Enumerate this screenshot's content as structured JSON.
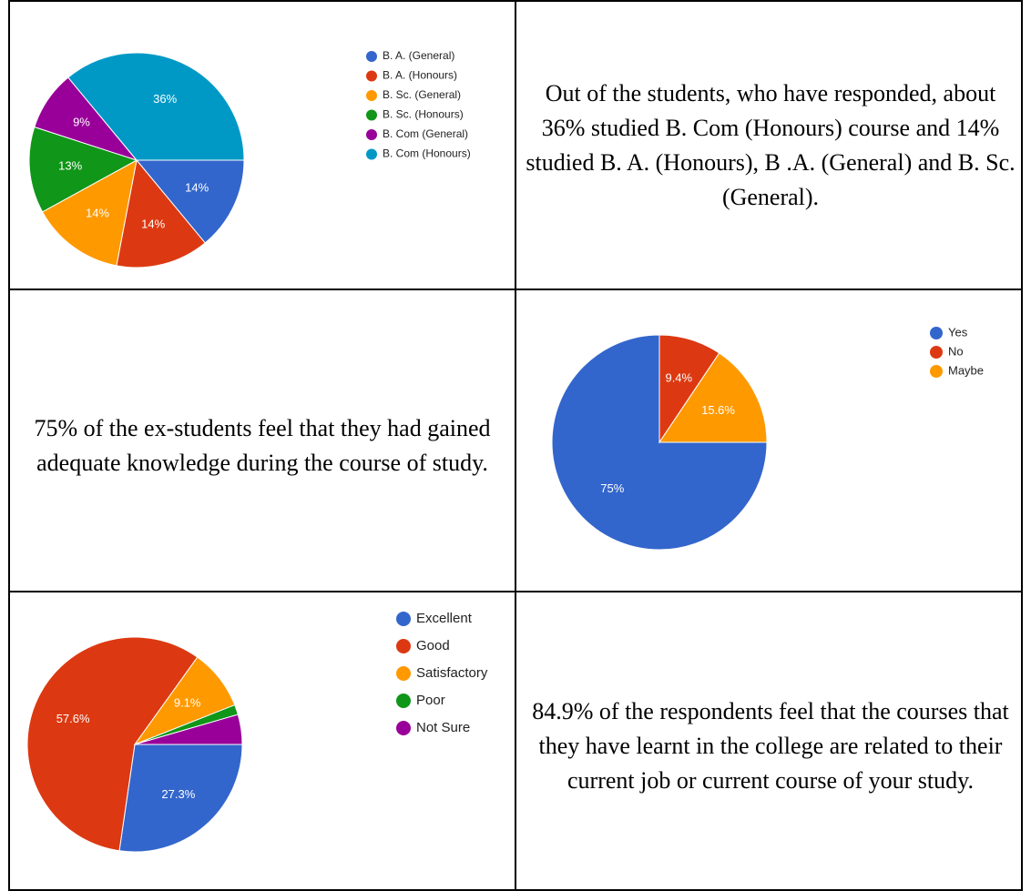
{
  "chart_data": [
    {
      "type": "pie",
      "categories": [
        "B. A. (General)",
        "B. A. (Honours)",
        "B. Sc. (General)",
        "B. Sc. (Honours)",
        "B. Com (General)",
        "B. Com (Honours)"
      ],
      "values": [
        14,
        14,
        14,
        13,
        9,
        36
      ],
      "value_labels": [
        "14%",
        "14%",
        "14%",
        "13%",
        "9%",
        "36%"
      ],
      "colors": [
        "#3366cc",
        "#dc3912",
        "#ff9900",
        "#109618",
        "#990099",
        "#0099c6"
      ]
    },
    {
      "type": "pie",
      "categories": [
        "Yes",
        "No",
        "Maybe"
      ],
      "values": [
        75,
        9.4,
        15.6
      ],
      "value_labels": [
        "75%",
        "9.4%",
        "15.6%"
      ],
      "colors": [
        "#3366cc",
        "#dc3912",
        "#ff9900"
      ]
    },
    {
      "type": "pie",
      "categories": [
        "Excellent",
        "Good",
        "Satisfactory",
        "Poor",
        "Not Sure"
      ],
      "values": [
        27.3,
        57.6,
        9.1,
        1.5,
        4.5
      ],
      "value_labels": [
        "27.3%",
        "57.6%",
        "9.1%",
        null,
        null
      ],
      "colors": [
        "#3366cc",
        "#dc3912",
        "#ff9900",
        "#109618",
        "#990099"
      ]
    }
  ],
  "descriptions": [
    "Out of the students, who have responded, about 36% studied B. Com (Honours) course and 14% studied B. A. (Honours), B .A. (General) and B. Sc. (General).",
    "75% of the ex-students feel that they had gained adequate knowledge during the course of study.",
    "84.9% of the respondents feel that the courses that they have learnt in the college are related to their current job or current course of your study."
  ]
}
